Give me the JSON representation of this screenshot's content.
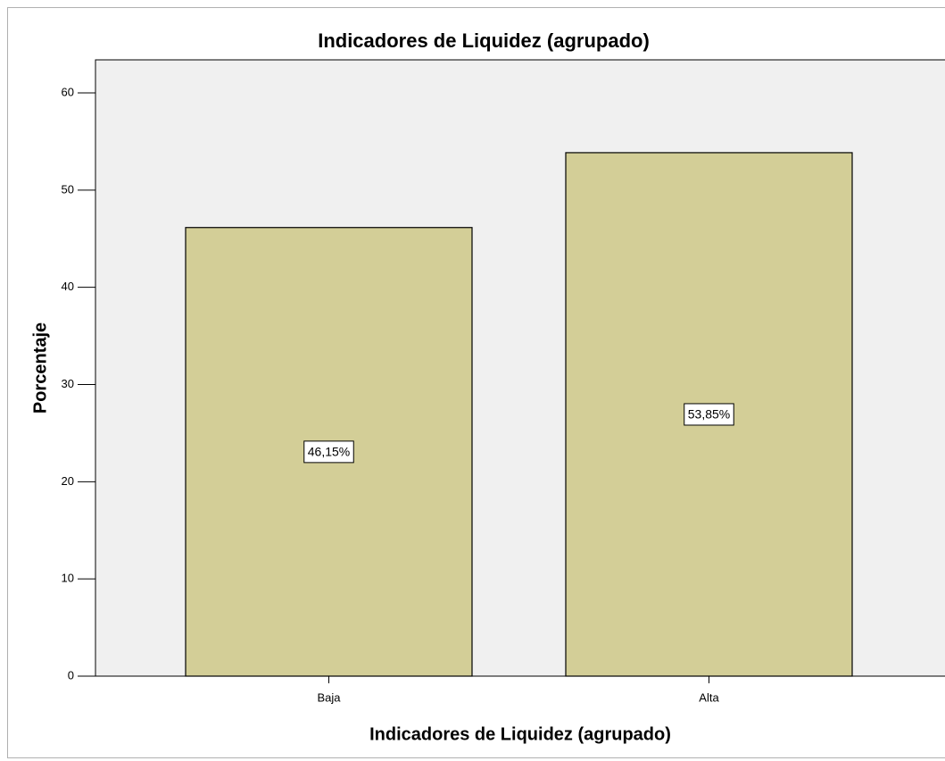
{
  "chart_data": {
    "type": "bar",
    "title": "Indicadores de Liquidez (agrupado)",
    "x_label": "Indicadores de Liquidez (agrupado)",
    "y_label": "Porcentaje",
    "categories": [
      "Baja",
      "Alta"
    ],
    "values": [
      46.15,
      53.85
    ],
    "value_labels": [
      "46,15%",
      "53,85%"
    ],
    "color": "#d3ce97",
    "ylim": [
      0,
      63.4
    ],
    "yticks": [
      0,
      10,
      20,
      30,
      40,
      50,
      60
    ],
    "grid": false
  }
}
